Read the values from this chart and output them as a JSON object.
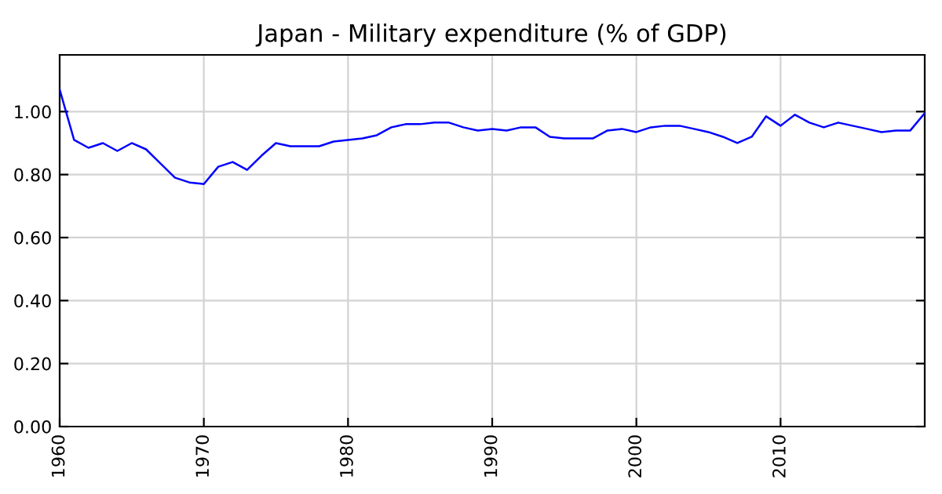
{
  "chart_data": {
    "type": "line",
    "title": "Japan - Military expenditure (% of GDP)",
    "x": [
      1960,
      1961,
      1962,
      1963,
      1964,
      1965,
      1966,
      1967,
      1968,
      1969,
      1970,
      1971,
      1972,
      1973,
      1974,
      1975,
      1976,
      1977,
      1978,
      1979,
      1980,
      1981,
      1982,
      1983,
      1984,
      1985,
      1986,
      1987,
      1988,
      1989,
      1990,
      1991,
      1992,
      1993,
      1994,
      1995,
      1996,
      1997,
      1998,
      1999,
      2000,
      2001,
      2002,
      2003,
      2004,
      2005,
      2006,
      2007,
      2008,
      2009,
      2010,
      2011,
      2012,
      2013,
      2014,
      2015,
      2016,
      2017,
      2018,
      2019,
      2020
    ],
    "series": [
      {
        "color": "#0000ff",
        "values": [
          1.07,
          0.91,
          0.885,
          0.9,
          0.875,
          0.9,
          0.88,
          0.835,
          0.79,
          0.775,
          0.77,
          0.825,
          0.84,
          0.815,
          0.86,
          0.9,
          0.89,
          0.89,
          0.89,
          0.905,
          0.91,
          0.915,
          0.925,
          0.95,
          0.96,
          0.96,
          0.965,
          0.965,
          0.95,
          0.94,
          0.945,
          0.94,
          0.95,
          0.95,
          0.92,
          0.915,
          0.915,
          0.915,
          0.94,
          0.945,
          0.935,
          0.95,
          0.955,
          0.955,
          0.945,
          0.935,
          0.92,
          0.9,
          0.92,
          0.985,
          0.955,
          0.99,
          0.965,
          0.95,
          0.965,
          0.955,
          0.945,
          0.935,
          0.94,
          0.94,
          0.995
        ]
      }
    ],
    "xlim": [
      1960,
      2020
    ],
    "xticks": [
      1960,
      1970,
      1980,
      1990,
      2000,
      2010
    ],
    "ylim": [
      0,
      1.18
    ],
    "yticks": [
      {
        "value": 0,
        "label": "0.00"
      },
      {
        "value": 0.2,
        "label": "0.20"
      },
      {
        "value": 0.4,
        "label": "0.40"
      },
      {
        "value": 0.6,
        "label": "0.60"
      },
      {
        "value": 0.8,
        "label": "0.80"
      },
      {
        "value": 1.0,
        "label": "1.00"
      }
    ],
    "grid": true,
    "marker": "none",
    "line_style": "solid"
  }
}
